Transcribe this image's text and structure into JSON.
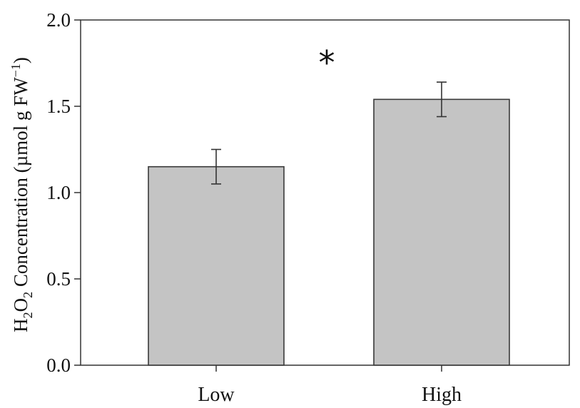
{
  "chart_data": {
    "type": "bar",
    "categories": [
      "Low",
      "High"
    ],
    "values": [
      1.15,
      1.54
    ],
    "errors": [
      0.1,
      0.1
    ],
    "ylabel": {
      "main": "H",
      "sub1": "2",
      "o": "O",
      "sub2": "2",
      "rest": " Concentration (µmol g FW",
      "sup": "−1",
      "close": ")"
    },
    "ylim": [
      0,
      2.0
    ],
    "yticks": [
      "0.0",
      "0.5",
      "1.0",
      "1.5",
      "2.0"
    ],
    "annotation": "*",
    "bar_color": "#c4c4c4",
    "grid": false
  }
}
